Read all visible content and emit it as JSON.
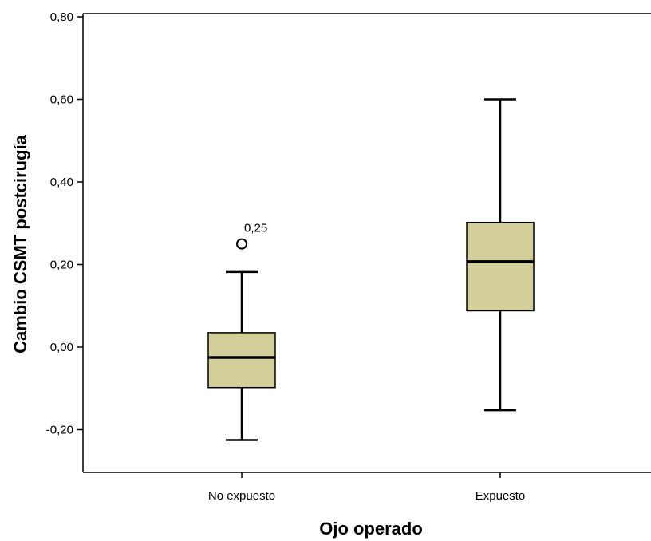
{
  "chart_data": {
    "type": "boxplot",
    "xlabel": "Ojo operado",
    "ylabel": "Cambio CSMT postcirugía",
    "ylim": [
      -0.31,
      0.8
    ],
    "yticks": [
      -0.2,
      0.0,
      0.2,
      0.4,
      0.6,
      0.8
    ],
    "ytick_labels": [
      "-0,20",
      "0,00",
      "0,20",
      "0,40",
      "0,60",
      "0,80"
    ],
    "grid": false,
    "categories": [
      "No expuesto",
      "Expuesto"
    ],
    "boxes": [
      {
        "category": "No expuesto",
        "whisker_low": -0.225,
        "q1": -0.098,
        "median": -0.025,
        "q3": 0.035,
        "whisker_high": 0.182,
        "outliers": [
          {
            "value": 0.25,
            "label": "0,25"
          }
        ]
      },
      {
        "category": "Expuesto",
        "whisker_low": -0.153,
        "q1": 0.088,
        "median": 0.207,
        "q3": 0.302,
        "whisker_high": 0.6,
        "outliers": []
      }
    ],
    "colors": {
      "box_fill": "#d3cf9b",
      "stroke": "#000000"
    }
  }
}
